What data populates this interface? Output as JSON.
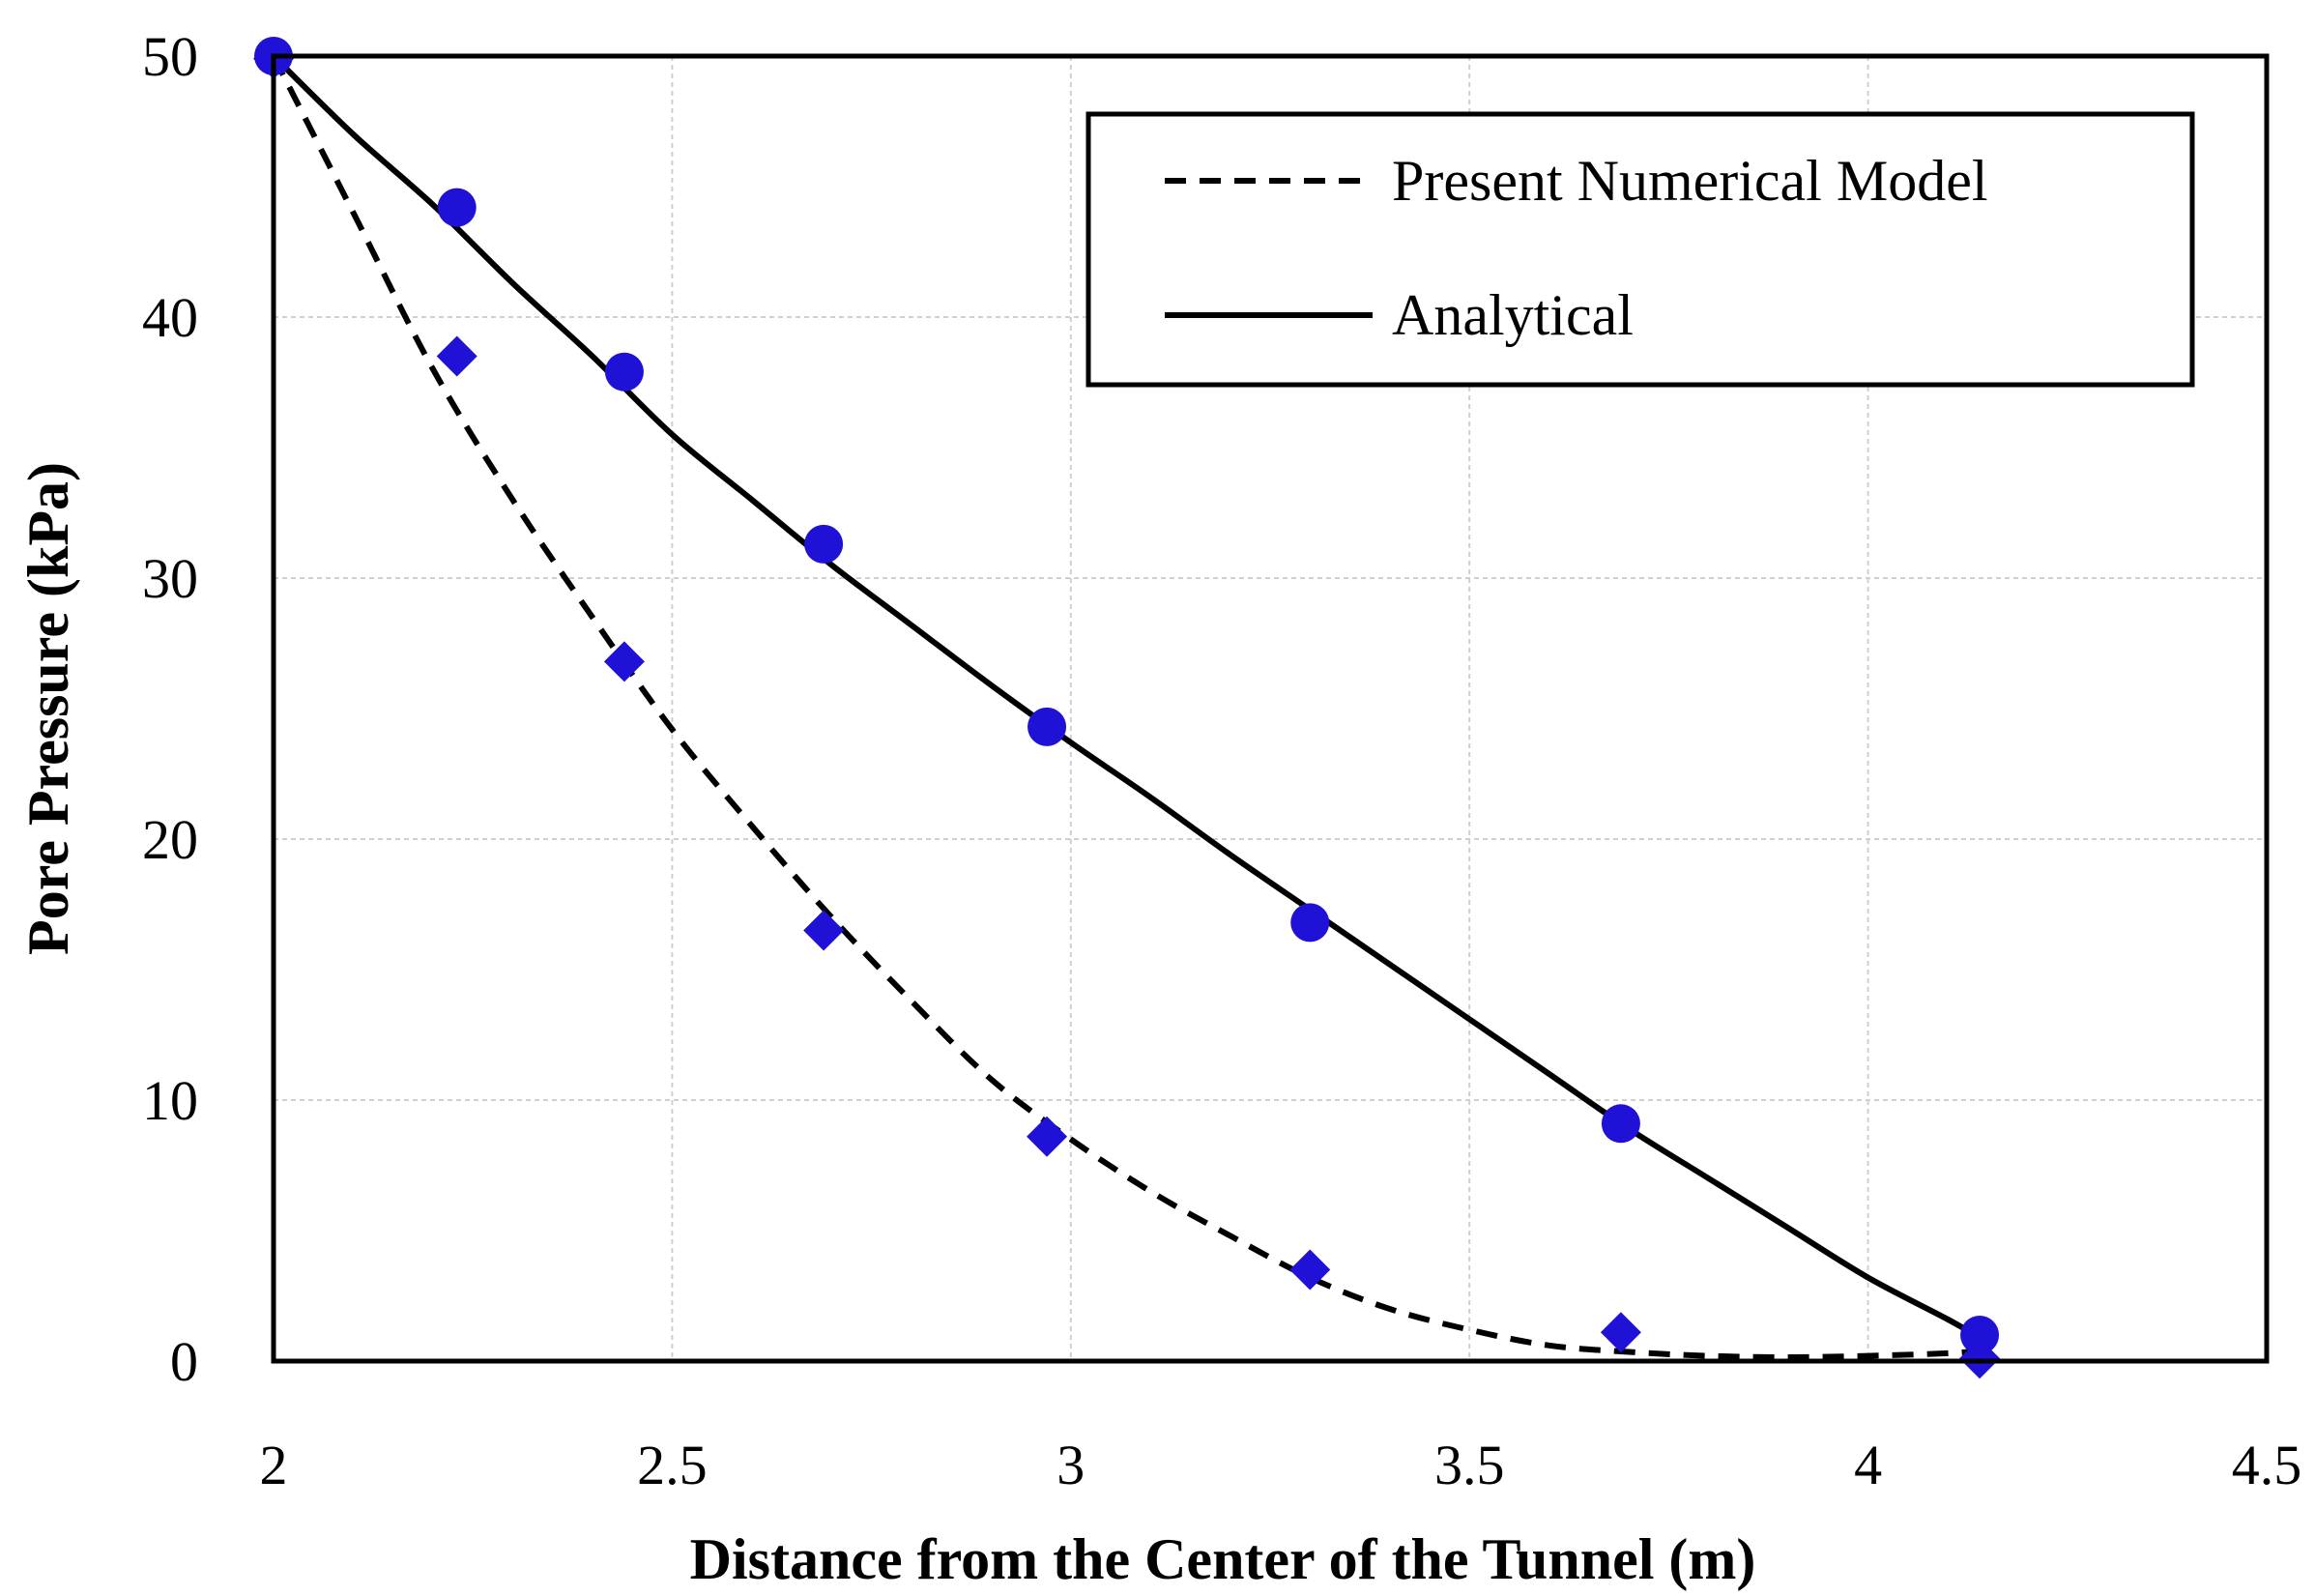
{
  "chart_data": {
    "type": "line",
    "title": "",
    "xlabel": "Distance from the Center of the Tunnel (m)",
    "ylabel": "Pore Pressure (kPa)",
    "xlim": [
      2,
      4.5
    ],
    "ylim": [
      0,
      50
    ],
    "xticks": [
      2,
      2.5,
      3,
      3.5,
      4,
      4.5
    ],
    "xtick_labels": [
      "2",
      "2.5",
      "3",
      "3.5",
      "4",
      "4.5"
    ],
    "yticks": [
      0,
      10,
      20,
      30,
      40,
      50
    ],
    "ytick_labels": [
      "0",
      "10",
      "20",
      "30",
      "40",
      "50"
    ],
    "grid": true,
    "legend_position": "top-right",
    "series": [
      {
        "name": "Present Numerical Model",
        "line_style": "dashed",
        "color": "#000000",
        "x": [
          2.0,
          2.1,
          2.2,
          2.3,
          2.4,
          2.5,
          2.6,
          2.7,
          2.8,
          2.9,
          3.0,
          3.1,
          3.2,
          3.3,
          3.4,
          3.5,
          3.6,
          3.7,
          3.8,
          3.9,
          4.0,
          4.1,
          4.14
        ],
        "values": [
          50.0,
          44.0,
          38.0,
          33.0,
          28.5,
          24.2,
          20.5,
          17.0,
          13.8,
          10.8,
          8.5,
          6.5,
          4.8,
          3.2,
          2.0,
          1.2,
          0.6,
          0.35,
          0.2,
          0.15,
          0.2,
          0.3,
          0.4
        ]
      },
      {
        "name": "Analytical",
        "line_style": "solid",
        "color": "#000000",
        "x": [
          2.0,
          2.1,
          2.2,
          2.3,
          2.4,
          2.5,
          2.6,
          2.7,
          2.8,
          2.9,
          3.0,
          3.1,
          3.2,
          3.3,
          3.4,
          3.5,
          3.6,
          3.7,
          3.8,
          3.9,
          4.0,
          4.1,
          4.14
        ],
        "values": [
          50.0,
          47.0,
          44.3,
          41.3,
          38.5,
          35.5,
          33.0,
          30.5,
          28.2,
          25.9,
          23.7,
          21.6,
          19.4,
          17.3,
          15.2,
          13.1,
          11.0,
          8.9,
          7.0,
          5.1,
          3.2,
          1.6,
          0.9
        ]
      }
    ],
    "markers": [
      {
        "shape": "diamond",
        "color": "#1f12d6",
        "x": [
          2.0,
          2.23,
          2.44,
          2.69,
          2.97,
          3.3,
          3.69,
          4.14
        ],
        "values": [
          49.9,
          38.5,
          26.8,
          16.5,
          8.6,
          3.5,
          1.1,
          0.1
        ]
      },
      {
        "shape": "circle",
        "color": "#1f12d6",
        "x": [
          2.0,
          2.23,
          2.44,
          2.69,
          2.97,
          3.3,
          3.69,
          4.14
        ],
        "values": [
          50.0,
          44.2,
          37.9,
          31.3,
          24.3,
          16.8,
          9.1,
          1.0
        ]
      }
    ]
  }
}
